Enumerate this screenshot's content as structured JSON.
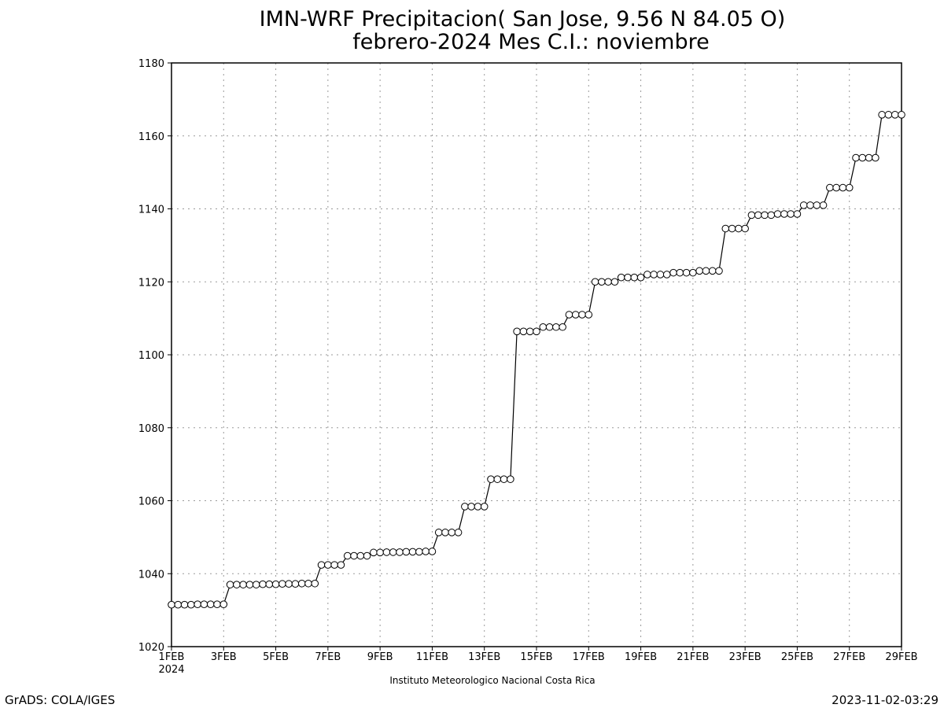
{
  "chart_data": {
    "type": "line",
    "title_line1": "IMN-WRF  Precipitacion( San Jose, 9.56  N 84.05  O)",
    "title_line2": "febrero-2024 Mes C.I.: noviembre",
    "xlabel": "",
    "ylabel": "",
    "ylim": [
      1020,
      1180
    ],
    "xlim": [
      0,
      28
    ],
    "grid": true,
    "y_ticks": [
      1020,
      1040,
      1060,
      1080,
      1100,
      1120,
      1140,
      1160,
      1180
    ],
    "x_ticks": [
      {
        "value": 0,
        "label": "1FEB",
        "sublabel": "2024"
      },
      {
        "value": 2,
        "label": "3FEB"
      },
      {
        "value": 4,
        "label": "5FEB"
      },
      {
        "value": 6,
        "label": "7FEB"
      },
      {
        "value": 8,
        "label": "9FEB"
      },
      {
        "value": 10,
        "label": "11FEB"
      },
      {
        "value": 12,
        "label": "13FEB"
      },
      {
        "value": 14,
        "label": "15FEB"
      },
      {
        "value": 16,
        "label": "17FEB"
      },
      {
        "value": 18,
        "label": "19FEB"
      },
      {
        "value": 20,
        "label": "21FEB"
      },
      {
        "value": 22,
        "label": "23FEB"
      },
      {
        "value": 24,
        "label": "25FEB"
      },
      {
        "value": 26,
        "label": "27FEB"
      },
      {
        "value": 28,
        "label": "29FEB"
      }
    ],
    "x_unit": "days since 1 FEB 2024 00Z (6-hourly steps)",
    "series": [
      {
        "marker": "open-circle",
        "points": [
          [
            0,
            1031.5
          ],
          [
            0.25,
            1031.5
          ],
          [
            0.5,
            1031.5
          ],
          [
            0.75,
            1031.5
          ],
          [
            1,
            1031.6
          ],
          [
            1.25,
            1031.6
          ],
          [
            1.5,
            1031.6
          ],
          [
            1.75,
            1031.6
          ],
          [
            2,
            1031.6
          ],
          [
            2.25,
            1037.0
          ],
          [
            2.5,
            1037.0
          ],
          [
            2.75,
            1037.0
          ],
          [
            3,
            1037.0
          ],
          [
            3.25,
            1037.0
          ],
          [
            3.5,
            1037.1
          ],
          [
            3.75,
            1037.1
          ],
          [
            4,
            1037.1
          ],
          [
            4.25,
            1037.2
          ],
          [
            4.5,
            1037.2
          ],
          [
            4.75,
            1037.2
          ],
          [
            5,
            1037.3
          ],
          [
            5.25,
            1037.3
          ],
          [
            5.5,
            1037.3
          ],
          [
            5.75,
            1042.4
          ],
          [
            6,
            1042.4
          ],
          [
            6.25,
            1042.4
          ],
          [
            6.5,
            1042.4
          ],
          [
            6.75,
            1044.9
          ],
          [
            7,
            1044.9
          ],
          [
            7.25,
            1044.9
          ],
          [
            7.5,
            1044.9
          ],
          [
            7.75,
            1045.8
          ],
          [
            8,
            1045.8
          ],
          [
            8.25,
            1045.9
          ],
          [
            8.5,
            1045.9
          ],
          [
            8.75,
            1045.9
          ],
          [
            9,
            1046.0
          ],
          [
            9.25,
            1046.0
          ],
          [
            9.5,
            1046.0
          ],
          [
            9.75,
            1046.1
          ],
          [
            10,
            1046.1
          ],
          [
            10.25,
            1051.3
          ],
          [
            10.5,
            1051.3
          ],
          [
            10.75,
            1051.3
          ],
          [
            11,
            1051.3
          ],
          [
            11.25,
            1058.4
          ],
          [
            11.5,
            1058.4
          ],
          [
            11.75,
            1058.4
          ],
          [
            12,
            1058.4
          ],
          [
            12.25,
            1065.9
          ],
          [
            12.5,
            1065.9
          ],
          [
            12.75,
            1065.9
          ],
          [
            13,
            1065.9
          ],
          [
            13.25,
            1106.4
          ],
          [
            13.5,
            1106.4
          ],
          [
            13.75,
            1106.4
          ],
          [
            14,
            1106.4
          ],
          [
            14.25,
            1107.6
          ],
          [
            14.5,
            1107.6
          ],
          [
            14.75,
            1107.6
          ],
          [
            15,
            1107.6
          ],
          [
            15.25,
            1111.0
          ],
          [
            15.5,
            1111.0
          ],
          [
            15.75,
            1111.0
          ],
          [
            16,
            1111.0
          ],
          [
            16.25,
            1120.0
          ],
          [
            16.5,
            1120.0
          ],
          [
            16.75,
            1120.0
          ],
          [
            17,
            1120.0
          ],
          [
            17.25,
            1121.2
          ],
          [
            17.5,
            1121.2
          ],
          [
            17.75,
            1121.2
          ],
          [
            18,
            1121.2
          ],
          [
            18.25,
            1122.0
          ],
          [
            18.5,
            1122.0
          ],
          [
            18.75,
            1122.0
          ],
          [
            19,
            1122.0
          ],
          [
            19.25,
            1122.5
          ],
          [
            19.5,
            1122.5
          ],
          [
            19.75,
            1122.5
          ],
          [
            20,
            1122.5
          ],
          [
            20.25,
            1123.0
          ],
          [
            20.5,
            1123.0
          ],
          [
            20.75,
            1123.0
          ],
          [
            21,
            1123.0
          ],
          [
            21.25,
            1134.6
          ],
          [
            21.5,
            1134.6
          ],
          [
            21.75,
            1134.6
          ],
          [
            22,
            1134.6
          ],
          [
            22.25,
            1138.3
          ],
          [
            22.5,
            1138.3
          ],
          [
            22.75,
            1138.3
          ],
          [
            23,
            1138.3
          ],
          [
            23.25,
            1138.6
          ],
          [
            23.5,
            1138.6
          ],
          [
            23.75,
            1138.6
          ],
          [
            24,
            1138.6
          ],
          [
            24.25,
            1141.0
          ],
          [
            24.5,
            1141.0
          ],
          [
            24.75,
            1141.0
          ],
          [
            25,
            1141.0
          ],
          [
            25.25,
            1145.8
          ],
          [
            25.5,
            1145.8
          ],
          [
            25.75,
            1145.8
          ],
          [
            26,
            1145.8
          ],
          [
            26.25,
            1154.0
          ],
          [
            26.5,
            1154.0
          ],
          [
            26.75,
            1154.0
          ],
          [
            27,
            1154.0
          ],
          [
            27.25,
            1165.8
          ],
          [
            27.5,
            1165.8
          ],
          [
            27.75,
            1165.8
          ],
          [
            28,
            1165.8
          ]
        ]
      }
    ],
    "footer_center": "Instituto Meteorologico Nacional Costa Rica",
    "footer_left": "GrADS: COLA/IGES",
    "footer_right": "2023-11-02-03:29"
  }
}
